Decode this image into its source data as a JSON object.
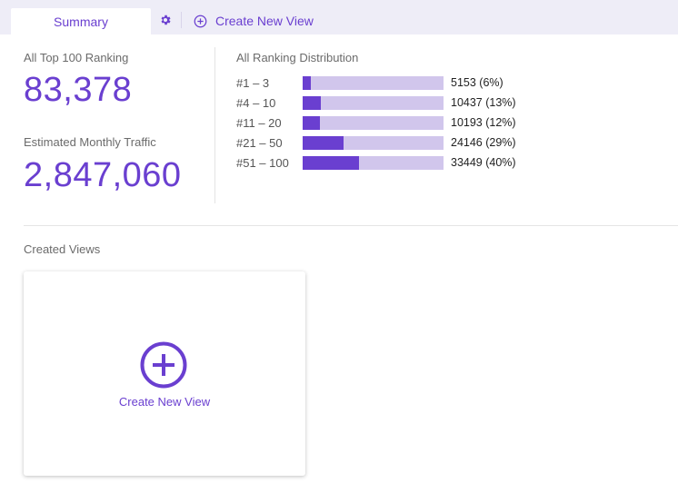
{
  "tabs": {
    "summary_label": "Summary",
    "settings_icon": "gear-icon",
    "create_label": "Create New View",
    "create_icon": "plus-circle-icon"
  },
  "stats": {
    "top100_label": "All Top 100 Ranking",
    "top100_value": "83,378",
    "traffic_label": "Estimated Monthly Traffic",
    "traffic_value": "2,847,060"
  },
  "distribution": {
    "title": "All Ranking Distribution",
    "rows": [
      {
        "range": "#1 – 3",
        "value_text": "5153 (6%)",
        "percent": 6
      },
      {
        "range": "#4 – 10",
        "value_text": "10437 (13%)",
        "percent": 13
      },
      {
        "range": "#11 – 20",
        "value_text": "10193 (12%)",
        "percent": 12
      },
      {
        "range": "#21 – 50",
        "value_text": "24146 (29%)",
        "percent": 29
      },
      {
        "range": "#51 – 100",
        "value_text": "33449 (40%)",
        "percent": 40
      }
    ]
  },
  "created_views": {
    "label": "Created Views",
    "card_label": "Create New View",
    "card_icon": "plus-circle-icon"
  },
  "colors": {
    "accent": "#6a3fd0",
    "bar_track": "#d1c6ec",
    "tab_bar_bg": "#eeedf7"
  }
}
